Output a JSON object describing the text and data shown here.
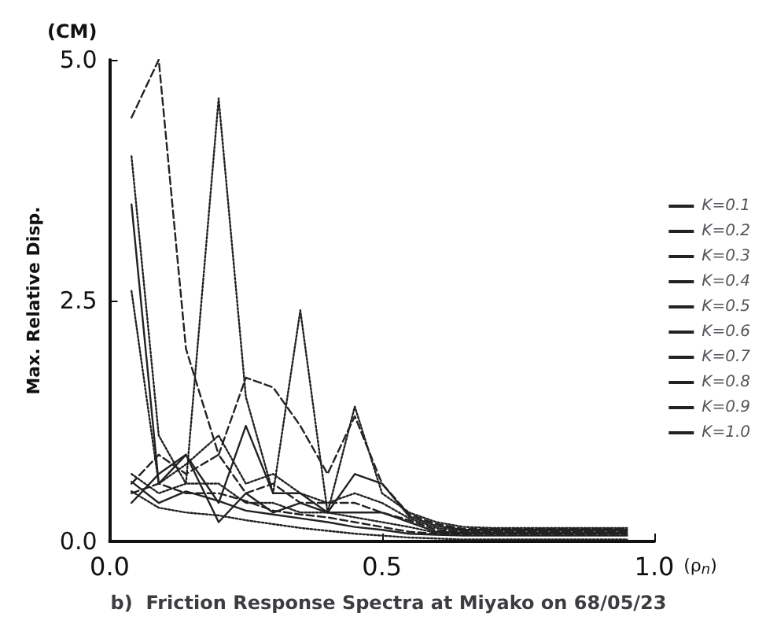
{
  "chart_data": {
    "type": "line",
    "title": "b)  Friction Response Spectra at Miyako on 68/05/23",
    "xlabel": "(ρ$_{n}$)",
    "ylabel": "Max. Relative Disp.",
    "annotations": [
      "(CM)"
    ],
    "x": [
      0.04,
      0.09,
      0.14,
      0.2,
      0.25,
      0.3,
      0.35,
      0.4,
      0.45,
      0.5,
      0.55,
      0.6,
      0.65,
      0.7,
      0.75,
      0.8,
      0.85,
      0.9,
      0.95
    ],
    "xlim": [
      0,
      1
    ],
    "xticks": [
      {
        "value": 0,
        "label": "0.0"
      },
      {
        "value": 0.5,
        "label": "0.5"
      },
      {
        "value": 1,
        "label": "1.0"
      }
    ],
    "ylim": [
      0,
      5
    ],
    "yticks": [
      {
        "value": 0,
        "label": "0.0"
      },
      2.5,
      {
        "value": 5,
        "label": "5.0"
      }
    ],
    "grid": false,
    "legend": "right",
    "marker": "none",
    "series": [
      {
        "name": "K=0.1",
        "color": "#222222",
        "line_style": "dotted",
        "values": [
          4.0,
          1.1,
          0.6,
          4.6,
          1.5,
          0.5,
          2.4,
          0.3,
          1.4,
          0.5,
          0.3,
          0.2,
          0.15,
          0.14,
          0.14,
          0.14,
          0.14,
          0.14,
          0.14
        ]
      },
      {
        "name": "K=0.2",
        "color": "#222222",
        "line_style": "dashed",
        "values": [
          4.4,
          5.0,
          2.0,
          0.9,
          1.7,
          1.6,
          1.2,
          0.7,
          1.3,
          0.6,
          0.28,
          0.18,
          0.13,
          0.13,
          0.13,
          0.13,
          0.13,
          0.13,
          0.13
        ]
      },
      {
        "name": "K=0.3",
        "color": "#222222",
        "line_style": "solid",
        "values": [
          3.5,
          0.6,
          0.9,
          0.4,
          1.2,
          0.5,
          0.5,
          0.3,
          0.7,
          0.6,
          0.26,
          0.16,
          0.12,
          0.12,
          0.12,
          0.12,
          0.12,
          0.12,
          0.12
        ]
      },
      {
        "name": "K=0.4",
        "color": "#222222",
        "line_style": "dotted",
        "values": [
          2.6,
          0.6,
          0.8,
          1.1,
          0.6,
          0.7,
          0.5,
          0.4,
          0.5,
          0.4,
          0.24,
          0.14,
          0.11,
          0.11,
          0.11,
          0.11,
          0.11,
          0.11,
          0.11
        ]
      },
      {
        "name": "K=0.5",
        "color": "#222222",
        "line_style": "dashed",
        "values": [
          0.6,
          0.9,
          0.7,
          0.9,
          0.5,
          0.6,
          0.4,
          0.4,
          0.4,
          0.3,
          0.22,
          0.12,
          0.1,
          0.1,
          0.1,
          0.1,
          0.1,
          0.1,
          0.1
        ]
      },
      {
        "name": "K=0.6",
        "color": "#222222",
        "line_style": "solid",
        "values": [
          0.4,
          0.7,
          0.9,
          0.2,
          0.5,
          0.3,
          0.4,
          0.3,
          0.3,
          0.3,
          0.2,
          0.1,
          0.09,
          0.09,
          0.09,
          0.09,
          0.09,
          0.09,
          0.09
        ]
      },
      {
        "name": "K=0.7",
        "color": "#222222",
        "line_style": "dotted",
        "values": [
          0.7,
          0.5,
          0.6,
          0.6,
          0.4,
          0.4,
          0.3,
          0.3,
          0.25,
          0.2,
          0.15,
          0.09,
          0.08,
          0.08,
          0.08,
          0.08,
          0.08,
          0.08,
          0.08
        ]
      },
      {
        "name": "K=0.8",
        "color": "#222222",
        "line_style": "dashed",
        "values": [
          0.5,
          0.6,
          0.5,
          0.5,
          0.42,
          0.32,
          0.28,
          0.25,
          0.2,
          0.15,
          0.1,
          0.08,
          0.07,
          0.07,
          0.07,
          0.07,
          0.07,
          0.07,
          0.07
        ]
      },
      {
        "name": "K=0.9",
        "color": "#222222",
        "line_style": "solid",
        "values": [
          0.62,
          0.4,
          0.52,
          0.42,
          0.32,
          0.28,
          0.24,
          0.2,
          0.15,
          0.12,
          0.08,
          0.07,
          0.06,
          0.06,
          0.06,
          0.06,
          0.06,
          0.06,
          0.06
        ]
      },
      {
        "name": "K=1.0",
        "color": "#222222",
        "line_style": "dotted",
        "values": [
          0.52,
          0.35,
          0.3,
          0.27,
          0.22,
          0.18,
          0.14,
          0.11,
          0.08,
          0.06,
          0.04,
          0.03,
          0.02,
          0.02,
          0.02,
          0.02,
          0.02,
          0.02,
          0.02
        ]
      }
    ]
  }
}
